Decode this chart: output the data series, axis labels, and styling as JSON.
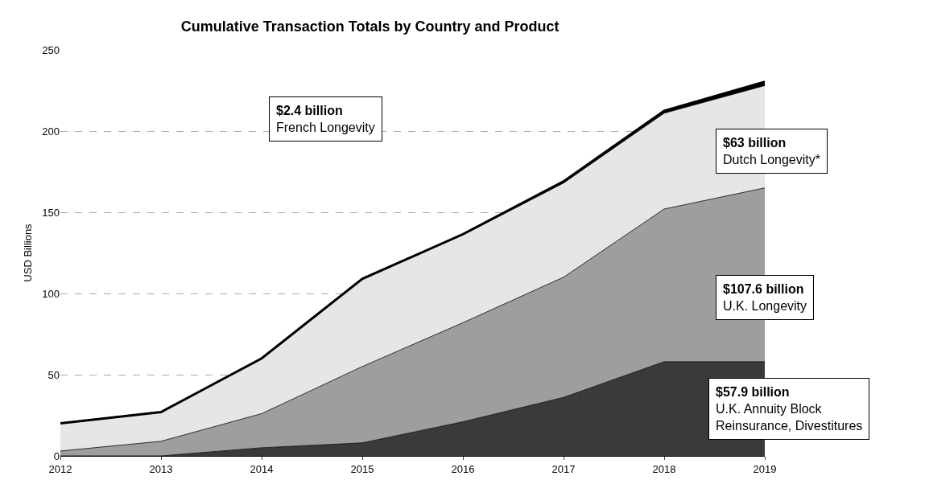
{
  "chart_data": {
    "type": "area",
    "stacked": true,
    "title": "Cumulative Transaction Totals by Country and Product",
    "ylabel": "USD Billions",
    "x": [
      2012,
      2013,
      2014,
      2015,
      2016,
      2017,
      2018,
      2019
    ],
    "xlim": [
      2012,
      2019
    ],
    "xticks": [
      2012,
      2013,
      2014,
      2015,
      2016,
      2017,
      2018,
      2019
    ],
    "ylim": [
      0,
      250
    ],
    "yticks": [
      0,
      50,
      100,
      150,
      200,
      250
    ],
    "grid": "y",
    "legend": false,
    "series": [
      {
        "name": "U.K. Annuity Block\nReinsurance, Divestitures",
        "color": "#3a3a3a",
        "values": [
          0,
          0,
          5,
          8,
          21,
          36,
          58,
          58
        ]
      },
      {
        "name": "U.K. Longevity",
        "color": "#9e9e9e",
        "values": [
          3,
          9,
          21,
          47,
          61,
          74,
          94,
          107
        ]
      },
      {
        "name": "Dutch Longevity*",
        "color": "#e6e6e6",
        "values": [
          17,
          18,
          34,
          54,
          54,
          58,
          59,
          63
        ]
      },
      {
        "name": "French Longevity",
        "color": "#000000",
        "values": [
          0,
          0,
          0,
          0,
          0.5,
          1,
          1.5,
          2.4
        ]
      }
    ],
    "annotations": [
      "$57.9 billion",
      "$107.6 billion",
      "$63 billion",
      "$2.4 billion"
    ]
  }
}
